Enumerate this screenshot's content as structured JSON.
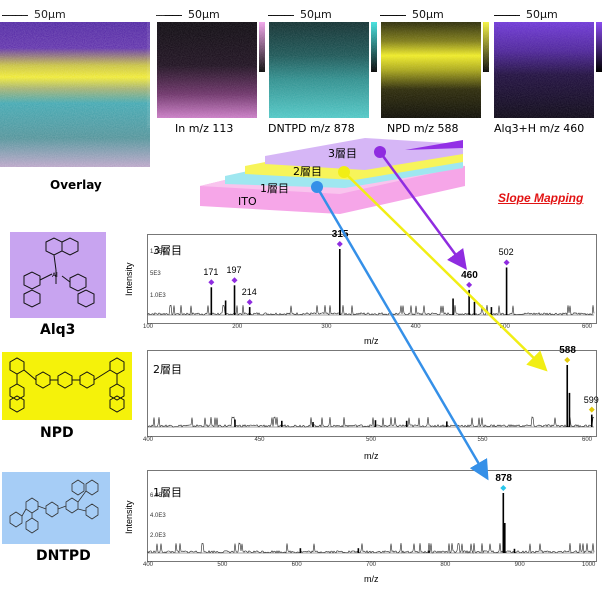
{
  "scale": "50µm",
  "images": [
    {
      "id": "overlay",
      "label": "Overlay"
    },
    {
      "id": "in",
      "label": "In  m/z 113",
      "colorbar": "#e08ad8"
    },
    {
      "id": "dntpd",
      "label": "DNTPD   m/z 878",
      "colorbar": "#3ed3d0"
    },
    {
      "id": "npd",
      "label": "NPD   m/z 588",
      "colorbar": "#f1ef23"
    },
    {
      "id": "alq3",
      "label": "Alq3+H   m/z 460",
      "colorbar": "#7d3ae8"
    }
  ],
  "layers": {
    "l3": "3層目",
    "l2": "2層目",
    "l1": "1層目",
    "ito": "ITO"
  },
  "slope_mapping": "Slope Mapping",
  "compounds": [
    {
      "name": "Alq3",
      "bg": "#c8a4f0"
    },
    {
      "name": "NPD",
      "bg": "#f5f20a"
    },
    {
      "name": "DNTPD",
      "bg": "#a6cdf6"
    }
  ],
  "chart_data": [
    {
      "type": "line",
      "panel_label": "3層目",
      "xlabel": "m/z",
      "ylabel": "Intensity",
      "xlim": [
        100,
        600
      ],
      "xticks": [
        100,
        200,
        300,
        400,
        500,
        600
      ],
      "yticks": [
        "1.0E4",
        "5E3",
        "1.0E3"
      ],
      "peaks": [
        {
          "x": 171,
          "y": 0.42
        },
        {
          "x": 187,
          "y": 0.22
        },
        {
          "x": 197,
          "y": 0.45
        },
        {
          "x": 214,
          "y": 0.12
        },
        {
          "x": 315,
          "y": 1.0
        },
        {
          "x": 442,
          "y": 0.25
        },
        {
          "x": 460,
          "y": 0.38
        },
        {
          "x": 466,
          "y": 0.2
        },
        {
          "x": 485,
          "y": 0.12
        },
        {
          "x": 502,
          "y": 0.72
        }
      ],
      "labels": [
        {
          "x": 171,
          "text": "171",
          "mark": true
        },
        {
          "x": 197,
          "text": "197",
          "mark": true
        },
        {
          "x": 214,
          "text": "214",
          "mark": true
        },
        {
          "x": 315,
          "text": "315",
          "mark": true,
          "bold": true
        },
        {
          "x": 460,
          "text": "460",
          "mark": true,
          "bold": true
        },
        {
          "x": 502,
          "text": "502",
          "mark": true
        }
      ]
    },
    {
      "type": "line",
      "panel_label": "2層目",
      "xlabel": "m/z",
      "ylabel": "",
      "xlim": [
        400,
        600
      ],
      "xticks": [
        400,
        450,
        500,
        550,
        600
      ],
      "yticks": [],
      "peaks": [
        {
          "x": 439,
          "y": 0.12
        },
        {
          "x": 460,
          "y": 0.1
        },
        {
          "x": 474,
          "y": 0.08
        },
        {
          "x": 502,
          "y": 0.11
        },
        {
          "x": 516,
          "y": 0.1
        },
        {
          "x": 534,
          "y": 0.09
        },
        {
          "x": 588,
          "y": 1.0
        },
        {
          "x": 589,
          "y": 0.55
        },
        {
          "x": 599,
          "y": 0.2
        }
      ],
      "labels": [
        {
          "x": 588,
          "text": "588",
          "mark": true,
          "bold": true
        },
        {
          "x": 599,
          "text": "599",
          "mark": true
        }
      ]
    },
    {
      "type": "line",
      "panel_label": "1層目",
      "xlabel": "m/z",
      "ylabel": "Intensity",
      "xlim": [
        400,
        1000
      ],
      "xticks": [
        400,
        500,
        600,
        700,
        800,
        900,
        1000
      ],
      "yticks": [
        "6.0E3",
        "4.0E3",
        "2.0E3"
      ],
      "peaks": [
        {
          "x": 605,
          "y": 0.08
        },
        {
          "x": 683,
          "y": 0.08
        },
        {
          "x": 778,
          "y": 0.04
        },
        {
          "x": 878,
          "y": 1.0
        },
        {
          "x": 880,
          "y": 0.5
        },
        {
          "x": 893,
          "y": 0.07
        }
      ],
      "labels": [
        {
          "x": 878,
          "text": "878",
          "mark": true,
          "bold": true
        }
      ]
    }
  ]
}
